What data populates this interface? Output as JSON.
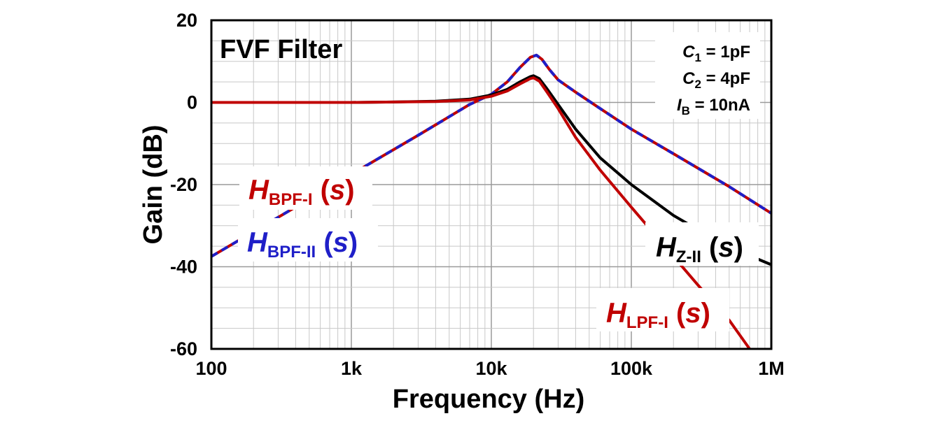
{
  "chart_data": {
    "type": "line",
    "title": "FVF Filter",
    "xlabel": "Frequency (Hz)",
    "ylabel": "Gain (dB)",
    "xscale": "log",
    "xlim": [
      100,
      1000000
    ],
    "ylim": [
      -60,
      20
    ],
    "grid": true,
    "x_ticks": [
      {
        "value": 100,
        "label": "100"
      },
      {
        "value": 1000,
        "label": "1k"
      },
      {
        "value": 10000,
        "label": "10k"
      },
      {
        "value": 100000,
        "label": "100k"
      },
      {
        "value": 1000000,
        "label": "1M"
      }
    ],
    "y_ticks": [
      {
        "value": 20,
        "label": "20"
      },
      {
        "value": 0,
        "label": "0"
      },
      {
        "value": -20,
        "label": "-20"
      },
      {
        "value": -40,
        "label": "-40"
      },
      {
        "value": -60,
        "label": "-60"
      }
    ],
    "parameters": [
      {
        "sym": "C",
        "sub": "1",
        "value": " = 1pF"
      },
      {
        "sym": "C",
        "sub": "2",
        "value": " = 4pF"
      },
      {
        "sym": "I",
        "sub": "B",
        "value": " = 10nA"
      }
    ],
    "series": [
      {
        "name": "HZ-II(s)",
        "label": {
          "h": "H",
          "sub": "Z-II",
          "s": "(s)"
        },
        "color": "#000000",
        "dashed": false,
        "x": [
          100,
          1000,
          2000,
          4000,
          7000,
          10000,
          13000,
          16000,
          19000,
          20000,
          22000,
          25000,
          30000,
          40000,
          60000,
          100000,
          200000,
          400000,
          700000,
          1000000
        ],
        "y": [
          0,
          0,
          0.1,
          0.3,
          0.8,
          1.8,
          3.2,
          5,
          6.3,
          6.5,
          5.8,
          3.3,
          -0.5,
          -6.5,
          -13.5,
          -20,
          -27.5,
          -33.5,
          -37.3,
          -39.5
        ]
      },
      {
        "name": "HLPF-I(s)",
        "label": {
          "h": "H",
          "sub": "LPF-I",
          "s": "(s)"
        },
        "color": "#c00000",
        "dashed": false,
        "x": [
          100,
          1000,
          2000,
          4000,
          7000,
          10000,
          13000,
          16000,
          19000,
          20000,
          22000,
          25000,
          30000,
          40000,
          60000,
          100000,
          150000,
          200000,
          300000,
          500000,
          700000
        ],
        "y": [
          0,
          0,
          0.1,
          0.2,
          0.6,
          1.5,
          2.8,
          4.5,
          5.8,
          6,
          5.2,
          2.5,
          -1.5,
          -8.5,
          -16.5,
          -25.5,
          -32.5,
          -37.5,
          -44.5,
          -53,
          -60
        ]
      },
      {
        "name": "HBPF-I(s)",
        "label": {
          "h": "H",
          "sub": "BPF-I",
          "s": "(s)"
        },
        "color": "#c00000",
        "dashed": false,
        "x": [
          100,
          1000,
          3000,
          7000,
          10000,
          13000,
          16000,
          19000,
          21000,
          23000,
          26000,
          30000,
          40000,
          60000,
          100000,
          200000,
          500000,
          1000000
        ],
        "y": [
          -37.5,
          -17.5,
          -8,
          -0.5,
          2,
          5,
          8.5,
          11,
          11.5,
          10.5,
          8,
          5.5,
          2.5,
          -1.5,
          -6.5,
          -12.5,
          -20.5,
          -27
        ]
      },
      {
        "name": "HBPF-II(s)",
        "label": {
          "h": "H",
          "sub": "BPF-II",
          "s": "(s)"
        },
        "color": "#1f1fc8",
        "dashed": true,
        "x": [
          100,
          1000,
          3000,
          7000,
          10000,
          13000,
          16000,
          19000,
          21000,
          23000,
          26000,
          30000,
          40000,
          60000,
          100000,
          200000,
          500000,
          1000000
        ],
        "y": [
          -37.5,
          -17.5,
          -8,
          -0.5,
          2,
          5,
          8.5,
          11,
          11.5,
          10.5,
          8,
          5.5,
          2.5,
          -1.5,
          -6.5,
          -12.5,
          -20.5,
          -27
        ]
      }
    ]
  }
}
